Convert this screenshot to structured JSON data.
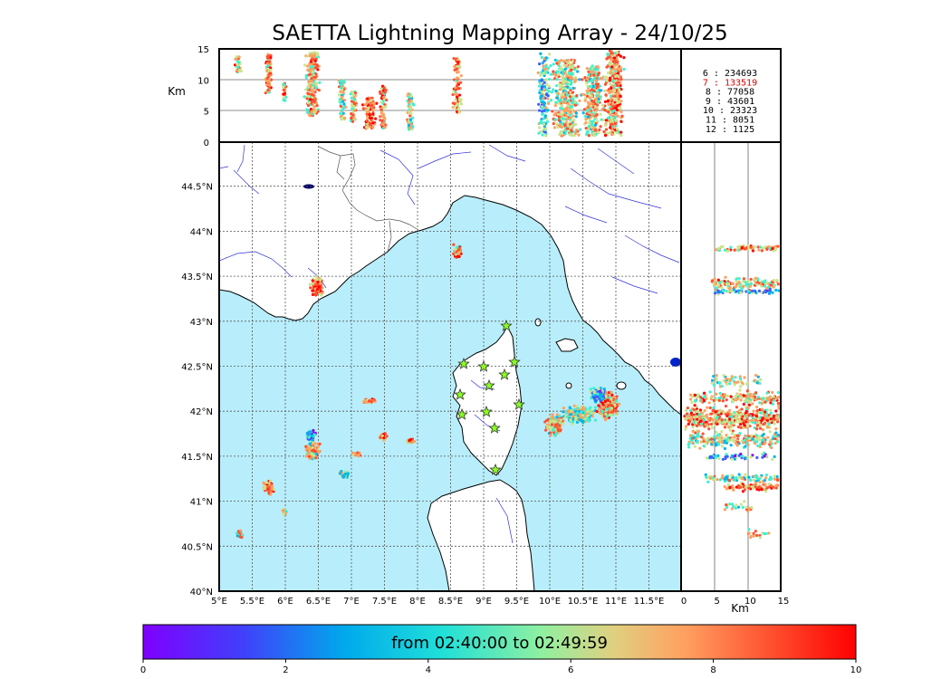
{
  "title": "SAETTA Lightning Mapping Array - 24/10/25",
  "altitude_panel": {
    "unit_label": "Km",
    "ticks": [
      "0",
      "5",
      "10",
      "15"
    ]
  },
  "side_panel": {
    "unit_label": "Km",
    "ticks": [
      "0",
      "5",
      "10",
      "15"
    ]
  },
  "map": {
    "lon_labels": [
      "5°E",
      "5.5°E",
      "6°E",
      "6.5°E",
      "7°E",
      "7.5°E",
      "8°E",
      "8.5°E",
      "9°E",
      "9.5°E",
      "10°E",
      "10.5°E",
      "11°E",
      "11.5°E"
    ],
    "lat_labels": [
      "40°N",
      "40.5°N",
      "41°N",
      "41.5°N",
      "42°N",
      "42.5°N",
      "43°N",
      "43.5°N",
      "44°N",
      "44.5°N"
    ],
    "sea_color": "#b8eefb",
    "land_color": "#ffffff",
    "river_color": "#3333dd"
  },
  "counts": [
    {
      "label": "6",
      "value": "234693",
      "color": "#000000"
    },
    {
      "label": "7",
      "value": "133519",
      "color": "#dd0000"
    },
    {
      "label": "8",
      "value": "77058",
      "color": "#000000"
    },
    {
      "label": "9",
      "value": "43601",
      "color": "#000000"
    },
    {
      "label": "10",
      "value": "23323",
      "color": "#000000"
    },
    {
      "label": "11",
      "value": "8051",
      "color": "#000000"
    },
    {
      "label": "12",
      "value": "1125",
      "color": "#000000"
    }
  ],
  "colorbar": {
    "label": "from 02:40:00 to 02:49:59",
    "ticks": [
      "0",
      "2",
      "4",
      "6",
      "8",
      "10"
    ],
    "colors": [
      "#7f00ff",
      "#3f5ffa",
      "#00b4eb",
      "#3ff0d0",
      "#c8e68c",
      "#ffa060",
      "#ff5030",
      "#ff0000"
    ]
  },
  "stations_icon": "star-icon"
}
